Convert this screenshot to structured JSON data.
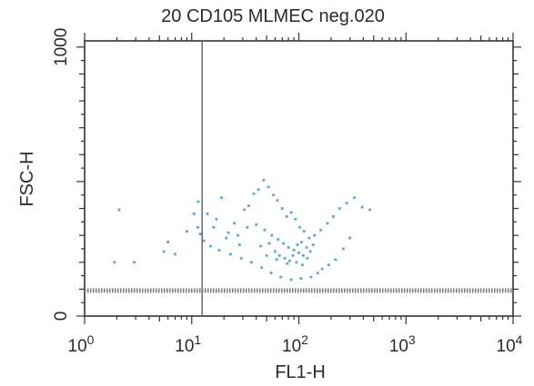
{
  "chart_data": {
    "type": "scatter",
    "title": "20 CD105 MLMEC neg.020",
    "xlabel": "FL1-H",
    "ylabel": "FSC-H",
    "x_scale": "log",
    "xlim": [
      1,
      10000
    ],
    "ylim": [
      0,
      1023
    ],
    "x_ticks": [
      {
        "base": "10",
        "exp": "0",
        "value": 1
      },
      {
        "base": "10",
        "exp": "1",
        "value": 10
      },
      {
        "base": "10",
        "exp": "2",
        "value": 100
      },
      {
        "base": "10",
        "exp": "3",
        "value": 1000
      },
      {
        "base": "10",
        "exp": "4",
        "value": 10000
      }
    ],
    "y_ticks": [
      {
        "label": "0",
        "value": 0
      },
      {
        "label": "1000",
        "value": 1000
      }
    ],
    "gate": {
      "x": 12.5,
      "y": 95
    },
    "grid": false,
    "series": [
      {
        "color": "#5aa6dc",
        "points": [
          [
            2.1,
            395
          ],
          [
            2.9,
            200
          ],
          [
            1.9,
            200
          ],
          [
            5.5,
            240
          ],
          [
            6,
            275
          ],
          [
            7,
            230
          ],
          [
            9,
            315
          ],
          [
            10.5,
            380
          ],
          [
            11.5,
            425
          ],
          [
            14,
            380
          ],
          [
            17,
            360
          ],
          [
            19,
            440
          ],
          [
            22,
            310
          ],
          [
            25,
            345
          ],
          [
            28,
            265
          ],
          [
            31,
            395
          ],
          [
            34,
            410
          ],
          [
            38,
            455
          ],
          [
            42,
            470
          ],
          [
            47,
            505
          ],
          [
            52,
            480
          ],
          [
            58,
            450
          ],
          [
            63,
            430
          ],
          [
            70,
            400
          ],
          [
            77,
            370
          ],
          [
            85,
            385
          ],
          [
            93,
            360
          ],
          [
            102,
            330
          ],
          [
            112,
            315
          ],
          [
            125,
            290
          ],
          [
            140,
            300
          ],
          [
            160,
            320
          ],
          [
            185,
            345
          ],
          [
            210,
            370
          ],
          [
            240,
            400
          ],
          [
            280,
            420
          ],
          [
            330,
            440
          ],
          [
            390,
            405
          ],
          [
            460,
            395
          ],
          [
            300,
            290
          ],
          [
            260,
            250
          ],
          [
            220,
            210
          ],
          [
            190,
            190
          ],
          [
            165,
            175
          ],
          [
            150,
            160
          ],
          [
            130,
            145
          ],
          [
            105,
            140
          ],
          [
            85,
            135
          ],
          [
            68,
            145
          ],
          [
            55,
            160
          ],
          [
            45,
            180
          ],
          [
            36,
            200
          ],
          [
            29,
            215
          ],
          [
            23,
            230
          ],
          [
            18,
            245
          ],
          [
            15,
            260
          ],
          [
            13,
            280
          ],
          [
            12,
            305
          ],
          [
            11.4,
            330
          ],
          [
            16,
            330
          ],
          [
            21,
            290
          ],
          [
            27,
            300
          ],
          [
            33,
            330
          ],
          [
            40,
            340
          ],
          [
            48,
            320
          ],
          [
            56,
            300
          ],
          [
            64,
            285
          ],
          [
            72,
            270
          ],
          [
            80,
            255
          ],
          [
            90,
            245
          ],
          [
            100,
            235
          ],
          [
            110,
            225
          ],
          [
            120,
            215
          ],
          [
            95,
            200
          ],
          [
            78,
            195
          ],
          [
            62,
            210
          ],
          [
            50,
            225
          ],
          [
            44,
            260
          ],
          [
            53,
            270
          ],
          [
            60,
            240
          ],
          [
            66,
            225
          ],
          [
            74,
            215
          ],
          [
            82,
            205
          ],
          [
            88,
            225
          ],
          [
            97,
            265
          ],
          [
            106,
            275
          ],
          [
            118,
            255
          ],
          [
            128,
            240
          ],
          [
            136,
            265
          ],
          [
            108,
            190
          ]
        ]
      }
    ]
  }
}
